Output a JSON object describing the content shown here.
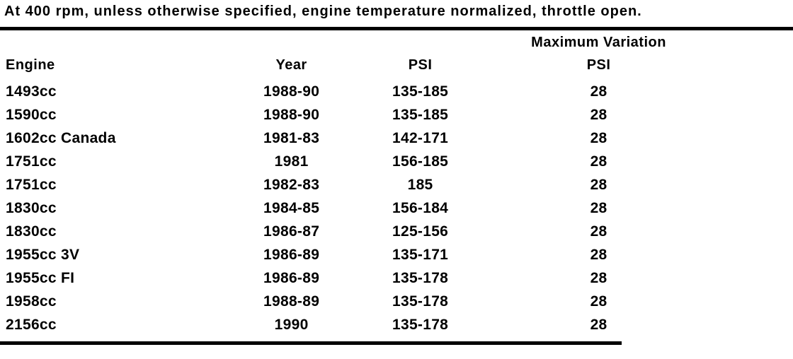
{
  "caption": "At 400 rpm, unless otherwise specified, engine temperature normalized, throttle open.",
  "colors": {
    "text": "#000000",
    "background": "#ffffff",
    "rule": "#000000"
  },
  "table": {
    "headers": {
      "engine": "Engine",
      "year": "Year",
      "psi": "PSI",
      "max_variation_line1": "Maximum Variation",
      "max_variation_line2": "PSI"
    },
    "rows": [
      {
        "engine": "1493cc",
        "year": "1988-90",
        "psi": "135-185",
        "max_variation": "28"
      },
      {
        "engine": "1590cc",
        "year": "1988-90",
        "psi": "135-185",
        "max_variation": "28"
      },
      {
        "engine": "1602cc Canada",
        "year": "1981-83",
        "psi": "142-171",
        "max_variation": "28"
      },
      {
        "engine": "1751cc",
        "year": "1981",
        "psi": "156-185",
        "max_variation": "28"
      },
      {
        "engine": "1751cc",
        "year": "1982-83",
        "psi": "185",
        "max_variation": "28"
      },
      {
        "engine": "1830cc",
        "year": "1984-85",
        "psi": "156-184",
        "max_variation": "28"
      },
      {
        "engine": "1830cc",
        "year": "1986-87",
        "psi": "125-156",
        "max_variation": "28"
      },
      {
        "engine": "1955cc 3V",
        "year": "1986-89",
        "psi": "135-171",
        "max_variation": "28"
      },
      {
        "engine": "1955cc FI",
        "year": "1986-89",
        "psi": "135-178",
        "max_variation": "28"
      },
      {
        "engine": "1958cc",
        "year": "1988-89",
        "psi": "135-178",
        "max_variation": "28"
      },
      {
        "engine": "2156cc",
        "year": "1990",
        "psi": "135-178",
        "max_variation": "28"
      }
    ]
  }
}
